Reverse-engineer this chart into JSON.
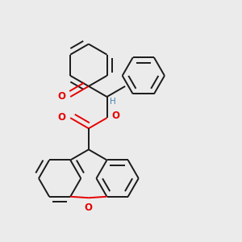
{
  "bg_color": "#ebebeb",
  "bond_color": "#1a1a1a",
  "o_color": "#e60000",
  "h_color": "#4682b4",
  "lw": 1.4,
  "dbo": 0.022,
  "figsize": [
    3.0,
    3.0
  ],
  "dpi": 100,
  "xlim": [
    0.0,
    1.0
  ],
  "ylim": [
    0.0,
    1.0
  ]
}
